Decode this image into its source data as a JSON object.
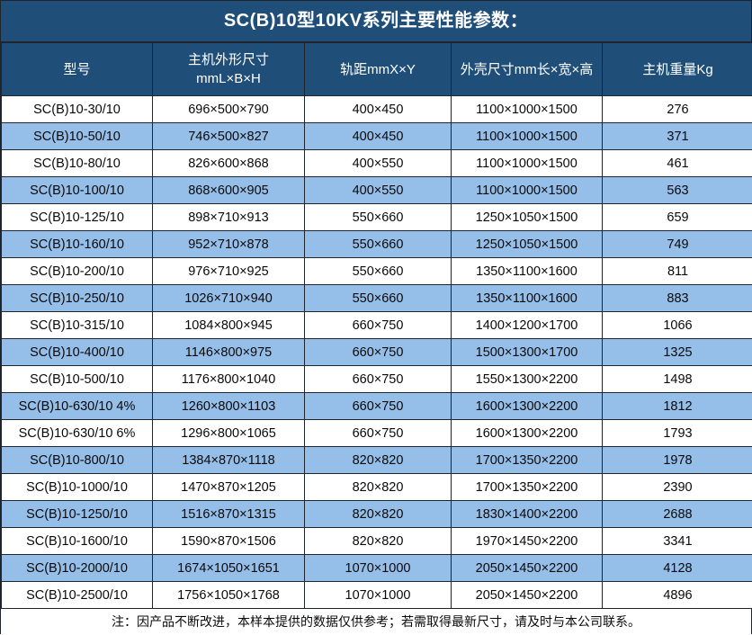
{
  "colors": {
    "header_bg": "#1F4E79",
    "header_text": "#FFFFFF",
    "row_bg": "#FFFFFF",
    "row_alt_bg": "#95BEE8",
    "border": "#20242C",
    "cell_text": "#0A0A0A"
  },
  "chart_data": {
    "type": "table",
    "title": "SC(B)10型10KV系列主要性能参数：",
    "columns": [
      {
        "lines": [
          "型号"
        ]
      },
      {
        "lines": [
          "主机外形尺寸",
          "mmL×B×H"
        ]
      },
      {
        "lines": [
          "轨距mmX×Y"
        ]
      },
      {
        "lines": [
          "外壳尺寸mm长×宽×高"
        ]
      },
      {
        "lines": [
          "主机重量Kg"
        ]
      }
    ],
    "rows": [
      [
        "SC(B)10-30/10",
        "696×500×790",
        "400×450",
        "1100×1000×1500",
        "276"
      ],
      [
        "SC(B)10-50/10",
        "746×500×827",
        "400×450",
        "1100×1000×1500",
        "371"
      ],
      [
        "SC(B)10-80/10",
        "826×600×868",
        "400×550",
        "1100×1000×1500",
        "461"
      ],
      [
        "SC(B)10-100/10",
        "868×600×905",
        "400×550",
        "1100×1000×1500",
        "563"
      ],
      [
        "SC(B)10-125/10",
        "898×710×913",
        "550×660",
        "1250×1050×1500",
        "659"
      ],
      [
        "SC(B)10-160/10",
        "952×710×878",
        "550×660",
        "1250×1050×1500",
        "749"
      ],
      [
        "SC(B)10-200/10",
        "976×710×925",
        "550×660",
        "1350×1100×1600",
        "811"
      ],
      [
        "SC(B)10-250/10",
        "1026×710×940",
        "550×660",
        "1350×1100×1600",
        "883"
      ],
      [
        "SC(B)10-315/10",
        "1084×800×945",
        "660×750",
        "1400×1200×1700",
        "1066"
      ],
      [
        "SC(B)10-400/10",
        "1146×800×975",
        "660×750",
        "1500×1300×1700",
        "1325"
      ],
      [
        "SC(B)10-500/10",
        "1176×800×1040",
        "660×750",
        "1550×1300×2200",
        "1498"
      ],
      [
        "SC(B)10-630/10 4%",
        "1260×800×1103",
        "660×750",
        "1600×1300×2200",
        "1812"
      ],
      [
        "SC(B)10-630/10 6%",
        "1296×800×1065",
        "660×750",
        "1600×1300×2200",
        "1793"
      ],
      [
        "SC(B)10-800/10",
        "1384×870×1118",
        "820×820",
        "1700×1350×2200",
        "1978"
      ],
      [
        "SC(B)10-1000/10",
        "1470×870×1205",
        "820×820",
        "1700×1350×2200",
        "2390"
      ],
      [
        "SC(B)10-1250/10",
        "1516×870×1315",
        "820×820",
        "1830×1400×2200",
        "2688"
      ],
      [
        "SC(B)10-1600/10",
        "1590×870×1506",
        "820×820",
        "1970×1450×2200",
        "3341"
      ],
      [
        "SC(B)10-2000/10",
        "1674×1050×1651",
        "1070×1000",
        "2050×1450×2200",
        "4128"
      ],
      [
        "SC(B)10-2500/10",
        "1756×1050×1768",
        "1070×1000",
        "2050×1450×2200",
        "4896"
      ]
    ],
    "note": "注：因产品不断改进，本样本提供的数据仅供参考；若需取得最新尺寸，请及时与本公司联系。"
  }
}
